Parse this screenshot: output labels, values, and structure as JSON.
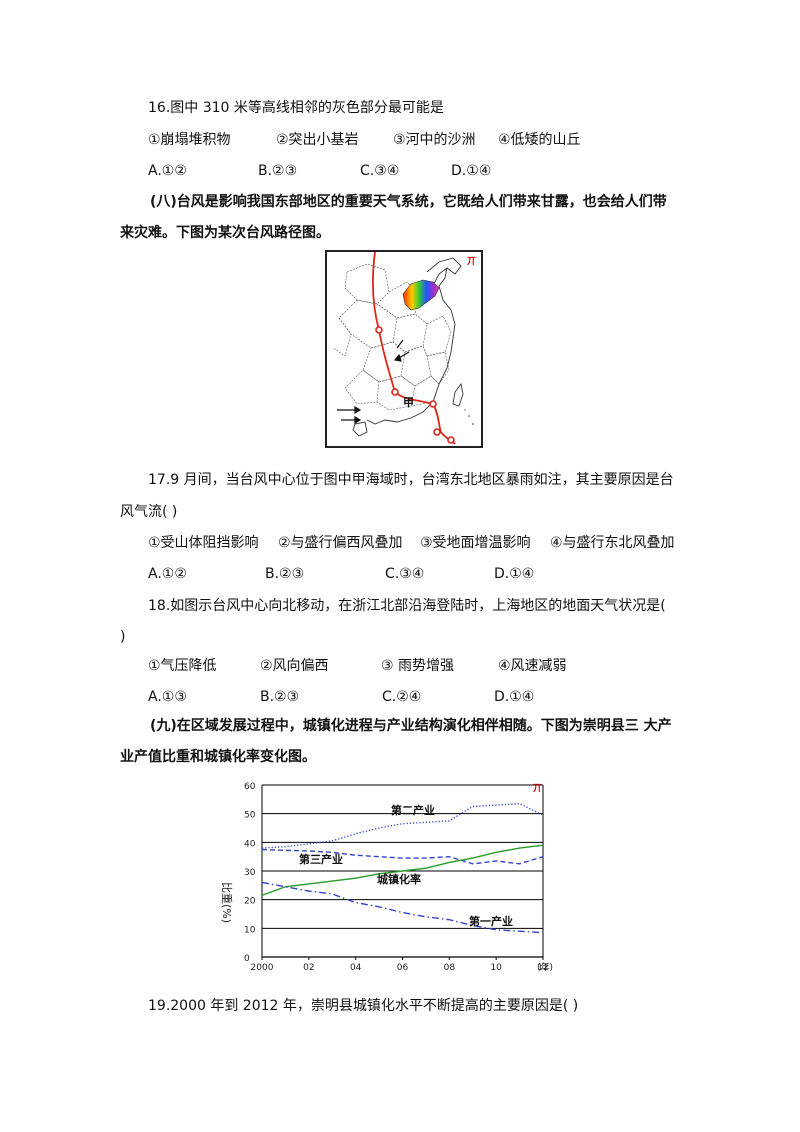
{
  "q16": {
    "stem": "16.图中 310 米等高线相邻的灰色部分最可能是",
    "options": [
      "①崩塌堆积物",
      "②突出小基岩",
      "③河中的沙洲",
      "④低矮的山丘"
    ],
    "choices": [
      "A.①②",
      "B.②③",
      "C.③④",
      "D.①④"
    ]
  },
  "section8": {
    "intro_line1": "(八)台风是影响我国东部地区的重要天气系统，它既给人们带来甘露，也会给人们带",
    "intro_line2": "来灾难。下图为某次台风路径图。"
  },
  "map": {
    "label_jia": "甲",
    "corner_mark": "丌",
    "colors": {
      "track": "#e0261b",
      "border": "#222222"
    }
  },
  "q17": {
    "stem_line1": "17.9 月间，当台风中心位于图中甲海域时，台湾东北地区暴雨如注，其主要原因是台",
    "stem_line2": "风气流(    )",
    "options": [
      "①受山体阻挡影响",
      "②与盛行偏西风叠加",
      "③受地面增温影响",
      "④与盛行东北风叠加"
    ],
    "choices": [
      "A.①②",
      "B.②③",
      "C.③④",
      "D.①④"
    ]
  },
  "q18": {
    "stem_line1": "18.如图示台风中心向北移动，在浙江北部沿海登陆时，上海地区的地面天气状况是(",
    "stem_line2": ")",
    "options": [
      "①气压降低",
      "②风向偏西",
      "③ 雨势增强",
      "④风速减弱"
    ],
    "choices": [
      "A.①③",
      "B.②③",
      "C.②④",
      "D.①④"
    ]
  },
  "section9": {
    "intro_line1": "(九)在区域发展过程中，城镇化进程与产业结构演化相伴相随。下图为崇明县三 大产",
    "intro_line2": "业产值比重和城镇化率变化图。"
  },
  "chart_data": {
    "type": "line",
    "ylabel": "比重(%)",
    "xlabel": "(年)",
    "corner_mark": "丌",
    "x": [
      2000,
      2001,
      2002,
      2003,
      2004,
      2005,
      2006,
      2007,
      2008,
      2009,
      2010,
      2011,
      2012
    ],
    "x_tick_labels": [
      "2000",
      "02",
      "04",
      "06",
      "08",
      "10",
      "12"
    ],
    "x_tick_values": [
      2000,
      2002,
      2004,
      2006,
      2008,
      2010,
      2012
    ],
    "y_ticks": [
      0,
      10,
      20,
      30,
      40,
      50,
      60
    ],
    "ylim": [
      0,
      60
    ],
    "grid": "horizontal",
    "series": [
      {
        "name": "第二产业",
        "style": "dotted",
        "color": "#3344cc",
        "values": [
          38,
          38.5,
          39.5,
          40.5,
          43,
          45,
          46.5,
          47,
          47.5,
          52.5,
          53,
          53.5,
          49.5
        ]
      },
      {
        "name": "第三产业",
        "style": "dashed",
        "color": "#3344cc",
        "values": [
          37.5,
          37.2,
          37,
          36.5,
          35.5,
          35,
          34.5,
          34.5,
          35,
          32.5,
          33.5,
          32.5,
          35
        ]
      },
      {
        "name": "城镇化率",
        "style": "solid",
        "color": "#2a9a2a",
        "values": [
          21.5,
          24.5,
          25.5,
          26.5,
          27.5,
          29,
          30,
          31,
          33,
          34.5,
          36.5,
          38,
          39
        ]
      },
      {
        "name": "第一产业",
        "style": "dashdot",
        "color": "#3344cc",
        "values": [
          26,
          24.5,
          23,
          22,
          19,
          17.5,
          15.5,
          14,
          13,
          11,
          9.5,
          9,
          8.5
        ]
      }
    ]
  },
  "q19": {
    "stem": "19.2000 年到 2012 年，崇明县城镇化水平不断提高的主要原因是(    )"
  }
}
